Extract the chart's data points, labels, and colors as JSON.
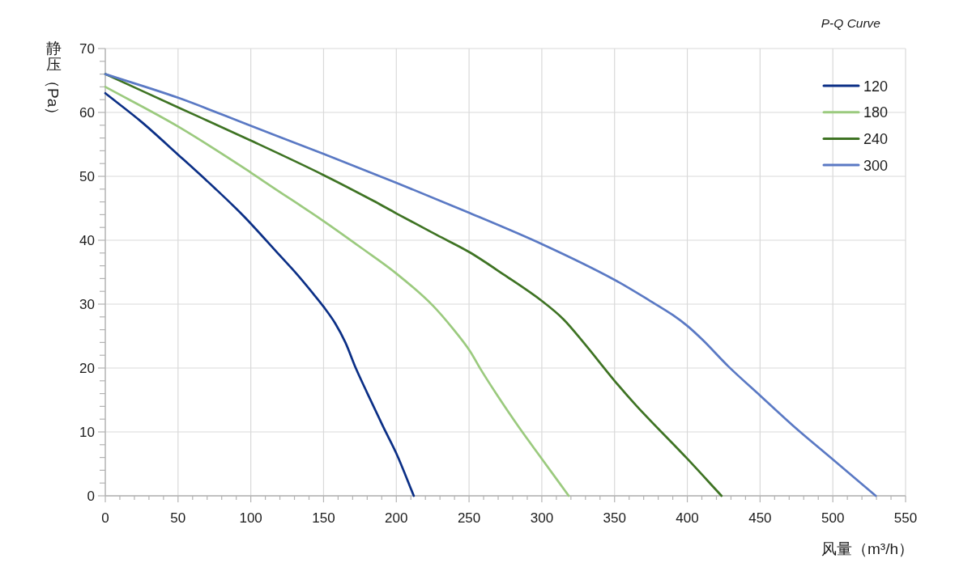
{
  "chart_data": {
    "type": "line",
    "title": "P-Q Curve",
    "xlabel": "风量（m³/h）",
    "ylabel": "静压（Pa）",
    "xlim": [
      0,
      550
    ],
    "ylim": [
      0,
      70
    ],
    "xticks": [
      0,
      {
        "value": 10,
        "label": null
      },
      {
        "value": 20,
        "label": null
      },
      {
        "value": 30,
        "label": null
      },
      {
        "value": 40,
        "label": null
      },
      50,
      {
        "value": 60,
        "label": null
      },
      {
        "value": 70,
        "label": null
      },
      {
        "value": 80,
        "label": null
      },
      {
        "value": 90,
        "label": null
      },
      100,
      {
        "value": 110,
        "label": null
      },
      {
        "value": 120,
        "label": null
      },
      {
        "value": 130,
        "label": null
      },
      {
        "value": 140,
        "label": null
      },
      150,
      {
        "value": 160,
        "label": null
      },
      {
        "value": 170,
        "label": null
      },
      {
        "value": 180,
        "label": null
      },
      {
        "value": 190,
        "label": null
      },
      200,
      {
        "value": 210,
        "label": null
      },
      {
        "value": 220,
        "label": null
      },
      {
        "value": 230,
        "label": null
      },
      {
        "value": 240,
        "label": null
      },
      250,
      {
        "value": 260,
        "label": null
      },
      {
        "value": 270,
        "label": null
      },
      {
        "value": 280,
        "label": null
      },
      {
        "value": 290,
        "label": null
      },
      300,
      {
        "value": 310,
        "label": null
      },
      {
        "value": 320,
        "label": null
      },
      {
        "value": 330,
        "label": null
      },
      {
        "value": 340,
        "label": null
      },
      350,
      {
        "value": 360,
        "label": null
      },
      {
        "value": 370,
        "label": null
      },
      {
        "value": 380,
        "label": null
      },
      {
        "value": 390,
        "label": null
      },
      400,
      {
        "value": 410,
        "label": null
      },
      {
        "value": 420,
        "label": null
      },
      {
        "value": 430,
        "label": null
      },
      {
        "value": 440,
        "label": null
      },
      450,
      {
        "value": 460,
        "label": null
      },
      {
        "value": 470,
        "label": null
      },
      {
        "value": 480,
        "label": null
      },
      {
        "value": 490,
        "label": null
      },
      500,
      {
        "value": 510,
        "label": null
      },
      {
        "value": 520,
        "label": null
      },
      {
        "value": 530,
        "label": null
      },
      {
        "value": 540,
        "label": null
      },
      550
    ],
    "yticks": [
      0,
      {
        "value": 2,
        "label": null
      },
      {
        "value": 4,
        "label": null
      },
      {
        "value": 6,
        "label": null
      },
      {
        "value": 8,
        "label": null
      },
      10,
      {
        "value": 12,
        "label": null
      },
      {
        "value": 14,
        "label": null
      },
      {
        "value": 16,
        "label": null
      },
      {
        "value": 18,
        "label": null
      },
      20,
      {
        "value": 22,
        "label": null
      },
      {
        "value": 24,
        "label": null
      },
      {
        "value": 26,
        "label": null
      },
      {
        "value": 28,
        "label": null
      },
      30,
      {
        "value": 32,
        "label": null
      },
      {
        "value": 34,
        "label": null
      },
      {
        "value": 36,
        "label": null
      },
      {
        "value": 38,
        "label": null
      },
      40,
      {
        "value": 42,
        "label": null
      },
      {
        "value": 44,
        "label": null
      },
      {
        "value": 46,
        "label": null
      },
      {
        "value": 48,
        "label": null
      },
      50,
      {
        "value": 52,
        "label": null
      },
      {
        "value": 54,
        "label": null
      },
      {
        "value": 56,
        "label": null
      },
      {
        "value": 58,
        "label": null
      },
      60,
      {
        "value": 62,
        "label": null
      },
      {
        "value": 64,
        "label": null
      },
      {
        "value": 66,
        "label": null
      },
      {
        "value": 68,
        "label": null
      },
      70
    ],
    "grid": true,
    "legend": "top right",
    "series": [
      {
        "name": "120",
        "color": "#0b2f86",
        "x": [
          0,
          25,
          50,
          75,
          95,
          120,
          132,
          143,
          150,
          158,
          165,
          172.5,
          180,
          191,
          200.5,
          212
        ],
        "values": [
          63,
          58.5,
          53.4,
          48.2,
          43.8,
          37.6,
          34.6,
          31.6,
          29.6,
          27,
          24,
          19.8,
          16.1,
          10.8,
          6.4,
          0
        ]
      },
      {
        "name": "180",
        "color": "#9bca7e",
        "x": [
          0,
          50,
          100,
          113,
          150,
          176,
          200,
          225,
          239.5,
          250.5,
          258,
          269.5,
          285,
          300,
          318.5
        ],
        "values": [
          64,
          57.8,
          50.6,
          48.6,
          43,
          38.8,
          34.8,
          29.8,
          26,
          22.7,
          19.8,
          15.7,
          10.5,
          5.8,
          0
        ]
      },
      {
        "name": "240",
        "color": "#3e7323",
        "x": [
          0,
          50,
          100,
          150,
          184,
          200,
          228,
          250.5,
          274,
          300,
          315,
          329,
          350,
          365,
          400,
          423.5
        ],
        "values": [
          66,
          60.8,
          55.6,
          50.2,
          46.2,
          44.2,
          40.8,
          38.1,
          34.6,
          30.5,
          27.6,
          23.9,
          18,
          14.1,
          5.8,
          0
        ]
      },
      {
        "name": "300",
        "color": "#5a79c4",
        "x": [
          0,
          50,
          100,
          150,
          200,
          250,
          300,
          350,
          374.5,
          390,
          400,
          411,
          428,
          450,
          475,
          500,
          529.5
        ],
        "values": [
          66,
          62.3,
          57.9,
          53.5,
          49,
          44.3,
          39.4,
          33.8,
          30.5,
          28.3,
          26.6,
          24.3,
          20.3,
          15.7,
          10.5,
          5.7,
          0
        ]
      }
    ]
  }
}
